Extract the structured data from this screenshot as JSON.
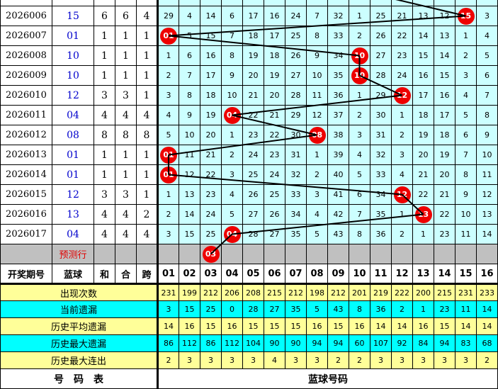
{
  "colors": {
    "omission_bg": "#ccffff",
    "ball": "#ee0000",
    "blue_text": "#0000cc",
    "stat_yellow": "#ffff99",
    "stat_cyan": "#00ffff",
    "prediction_bg": "#c0c0c0"
  },
  "top_partial": {
    "ball_col": 10
  },
  "rows": [
    {
      "period": "2026006",
      "blue": "15",
      "sum": "6",
      "he": "6",
      "kua": "4",
      "cells": [
        "29",
        "4",
        "14",
        "6",
        "17",
        "16",
        "24",
        "7",
        "32",
        "1",
        "25",
        "21",
        "13",
        "12",
        "15",
        "3"
      ]
    },
    {
      "period": "2026007",
      "blue": "01",
      "sum": "1",
      "he": "1",
      "kua": "1",
      "cells": [
        "01",
        "5",
        "15",
        "7",
        "18",
        "17",
        "25",
        "8",
        "33",
        "2",
        "26",
        "22",
        "14",
        "13",
        "1",
        "4"
      ]
    },
    {
      "period": "2026008",
      "blue": "10",
      "sum": "1",
      "he": "1",
      "kua": "1",
      "cells": [
        "1",
        "6",
        "16",
        "8",
        "19",
        "18",
        "26",
        "9",
        "34",
        "10",
        "27",
        "23",
        "15",
        "14",
        "2",
        "5"
      ]
    },
    {
      "period": "2026009",
      "blue": "10",
      "sum": "1",
      "he": "1",
      "kua": "1",
      "cells": [
        "2",
        "7",
        "17",
        "9",
        "20",
        "19",
        "27",
        "10",
        "35",
        "10",
        "28",
        "24",
        "16",
        "15",
        "3",
        "6"
      ]
    },
    {
      "period": "2026010",
      "blue": "12",
      "sum": "3",
      "he": "3",
      "kua": "1",
      "cells": [
        "3",
        "8",
        "18",
        "10",
        "21",
        "20",
        "28",
        "11",
        "36",
        "1",
        "29",
        "12",
        "17",
        "16",
        "4",
        "7"
      ]
    },
    {
      "period": "2026011",
      "blue": "04",
      "sum": "4",
      "he": "4",
      "kua": "4",
      "cells": [
        "4",
        "9",
        "19",
        "04",
        "22",
        "21",
        "29",
        "12",
        "37",
        "2",
        "30",
        "1",
        "18",
        "17",
        "5",
        "8"
      ]
    },
    {
      "period": "2026012",
      "blue": "08",
      "sum": "8",
      "he": "8",
      "kua": "8",
      "cells": [
        "5",
        "10",
        "20",
        "1",
        "23",
        "22",
        "30",
        "08",
        "38",
        "3",
        "31",
        "2",
        "19",
        "18",
        "6",
        "9"
      ]
    },
    {
      "period": "2026013",
      "blue": "01",
      "sum": "1",
      "he": "1",
      "kua": "1",
      "cells": [
        "01",
        "11",
        "21",
        "2",
        "24",
        "23",
        "31",
        "1",
        "39",
        "4",
        "32",
        "3",
        "20",
        "19",
        "7",
        "10"
      ]
    },
    {
      "period": "2026014",
      "blue": "01",
      "sum": "1",
      "he": "1",
      "kua": "1",
      "cells": [
        "01",
        "12",
        "22",
        "3",
        "25",
        "24",
        "32",
        "2",
        "40",
        "5",
        "33",
        "4",
        "21",
        "20",
        "8",
        "11"
      ]
    },
    {
      "period": "2026015",
      "blue": "12",
      "sum": "3",
      "he": "3",
      "kua": "1",
      "cells": [
        "1",
        "13",
        "23",
        "4",
        "26",
        "25",
        "33",
        "3",
        "41",
        "6",
        "34",
        "12",
        "22",
        "21",
        "9",
        "12"
      ]
    },
    {
      "period": "2026016",
      "blue": "13",
      "sum": "4",
      "he": "4",
      "kua": "2",
      "cells": [
        "2",
        "14",
        "24",
        "5",
        "27",
        "26",
        "34",
        "4",
        "42",
        "7",
        "35",
        "1",
        "13",
        "22",
        "10",
        "13"
      ]
    },
    {
      "period": "2026017",
      "blue": "04",
      "sum": "4",
      "he": "4",
      "kua": "4",
      "cells": [
        "3",
        "15",
        "25",
        "04",
        "28",
        "27",
        "35",
        "5",
        "43",
        "8",
        "36",
        "2",
        "1",
        "23",
        "11",
        "14"
      ]
    }
  ],
  "prediction": {
    "label": "预测行",
    "ball": "03"
  },
  "header": {
    "period": "开奖期号",
    "blue": "蓝球",
    "sum": "和",
    "he": "合",
    "kua": "跨",
    "numbers": [
      "01",
      "02",
      "03",
      "04",
      "05",
      "06",
      "07",
      "08",
      "09",
      "10",
      "11",
      "12",
      "13",
      "14",
      "15",
      "16"
    ]
  },
  "stats": [
    {
      "label": "出现次数",
      "values": [
        "231",
        "199",
        "212",
        "206",
        "208",
        "215",
        "212",
        "198",
        "212",
        "201",
        "219",
        "222",
        "200",
        "215",
        "231",
        "233"
      ]
    },
    {
      "label": "当前遗漏",
      "values": [
        "3",
        "15",
        "25",
        "0",
        "28",
        "27",
        "35",
        "5",
        "43",
        "8",
        "36",
        "2",
        "1",
        "23",
        "11",
        "14"
      ]
    },
    {
      "label": "历史平均遗漏",
      "values": [
        "14",
        "16",
        "15",
        "16",
        "15",
        "15",
        "15",
        "16",
        "15",
        "16",
        "14",
        "14",
        "16",
        "15",
        "14",
        "14"
      ]
    },
    {
      "label": "历史最大遗漏",
      "values": [
        "86",
        "112",
        "86",
        "112",
        "104",
        "90",
        "90",
        "94",
        "94",
        "60",
        "107",
        "92",
        "84",
        "94",
        "83",
        "68"
      ]
    },
    {
      "label": "历史最大连出",
      "values": [
        "2",
        "3",
        "3",
        "3",
        "3",
        "4",
        "3",
        "3",
        "2",
        "2",
        "3",
        "3",
        "3",
        "3",
        "3",
        "2"
      ]
    }
  ],
  "footer": {
    "left": "号　码　表",
    "right": "蓝球号码"
  }
}
